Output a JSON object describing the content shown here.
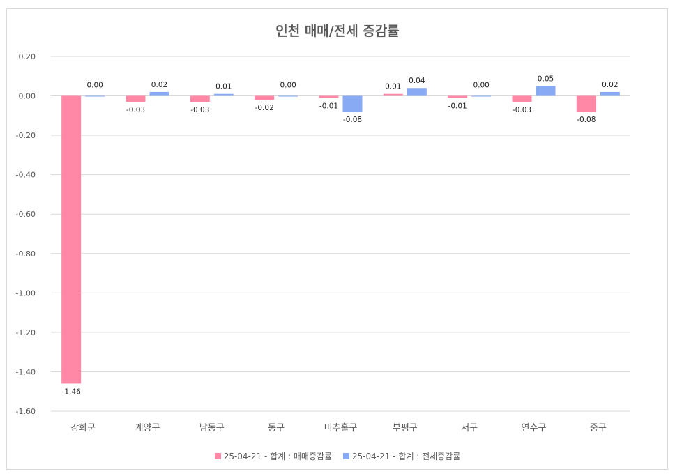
{
  "chart_data": {
    "type": "bar",
    "title": "인천 매매/전세 증감률",
    "categories": [
      "강화군",
      "계양구",
      "남동구",
      "동구",
      "미추홀구",
      "부평구",
      "서구",
      "연수구",
      "중구"
    ],
    "series": [
      {
        "name": "25-04-21 - 합계 : 매매증감률",
        "color": "#ff88a6",
        "values": [
          -1.46,
          -0.03,
          -0.03,
          -0.02,
          -0.01,
          0.01,
          -0.01,
          -0.03,
          -0.08
        ]
      },
      {
        "name": "25-04-21 - 합계 : 전세증감률",
        "color": "#88aaf5",
        "values": [
          0.0,
          0.02,
          0.01,
          0.0,
          -0.08,
          0.04,
          0.0,
          0.05,
          0.02
        ]
      }
    ],
    "ylim": [
      -1.6,
      0.2
    ],
    "yticks": [
      "0.20",
      "0.00",
      "-0.20",
      "-0.40",
      "-0.60",
      "-0.80",
      "-1.00",
      "-1.20",
      "-1.40",
      "-1.60"
    ],
    "ytick_values": [
      0.2,
      0.0,
      -0.2,
      -0.4,
      -0.6,
      -0.8,
      -1.0,
      -1.2,
      -1.4,
      -1.6
    ],
    "grid": true,
    "legend_position": "bottom"
  }
}
